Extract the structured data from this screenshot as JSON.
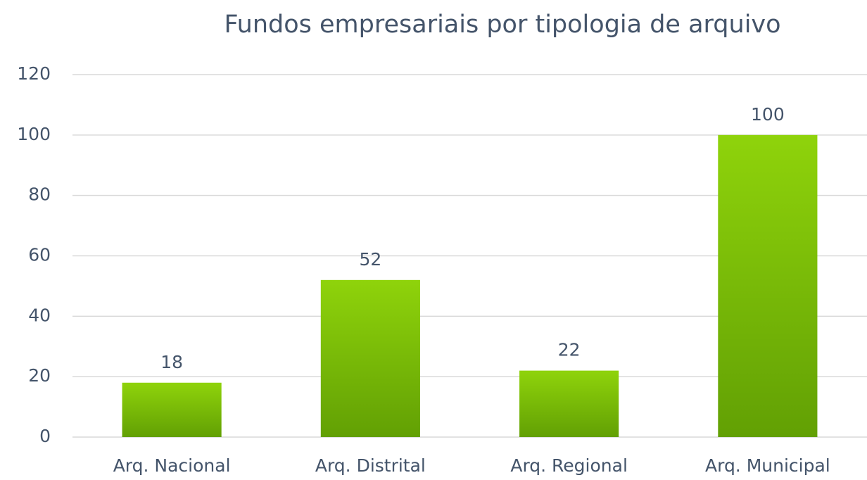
{
  "chart_data": {
    "type": "bar",
    "title": "Fundos empresariais por tipologia de arquivo",
    "categories": [
      "Arq. Nacional",
      "Arq. Distrital",
      "Arq. Regional",
      "Arq. Municipal"
    ],
    "values": [
      18,
      52,
      22,
      100
    ],
    "gradient": [
      "#8fd30b",
      "#62a004"
    ],
    "ylim": [
      0,
      120
    ],
    "yticks": [
      0,
      20,
      40,
      60,
      80,
      100,
      120
    ],
    "grid": true
  }
}
